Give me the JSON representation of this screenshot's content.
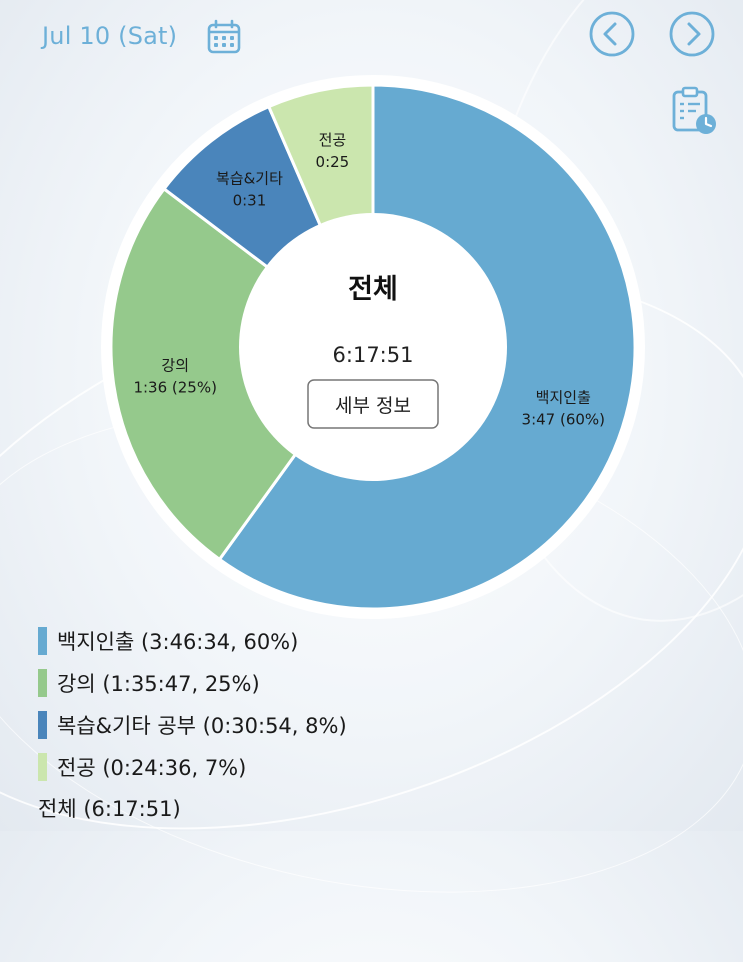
{
  "header": {
    "date": "Jul 10 (Sat)"
  },
  "icons": {
    "calendar": "calendar-icon",
    "prev": "chevron-left-icon",
    "next": "chevron-right-icon",
    "report": "clipboard-clock-icon"
  },
  "colors": {
    "accent": "#6db0d8"
  },
  "center": {
    "title": "전체",
    "total": "6:17:51",
    "detail_button": "세부 정보"
  },
  "chart_data": {
    "type": "pie",
    "donut": true,
    "series": [
      {
        "name": "백지인출",
        "value": 13594,
        "label_name": "백지인출",
        "label_value": "3:47 (60%)",
        "color": "#66aad1"
      },
      {
        "name": "강의",
        "value": 5747,
        "label_name": "강의",
        "label_value": "1:36 (25%)",
        "color": "#95c98c"
      },
      {
        "name": "복습&기타 공부",
        "value": 1854,
        "label_name": "복습&기타",
        "label_value": "0:31",
        "color": "#4a85bb"
      },
      {
        "name": "전공",
        "value": 1476,
        "label_name": "전공",
        "label_value": "0:25",
        "color": "#cbe6ae"
      }
    ],
    "legend_position": "bottom-left"
  },
  "legend": {
    "items": [
      {
        "label": "백지인출 (3:46:34, 60%)"
      },
      {
        "label": "강의 (1:35:47, 25%)"
      },
      {
        "label": "복습&기타 공부 (0:30:54, 8%)"
      },
      {
        "label": "전공 (0:24:36, 7%)"
      }
    ],
    "total": "전체 (6:17:51)"
  }
}
